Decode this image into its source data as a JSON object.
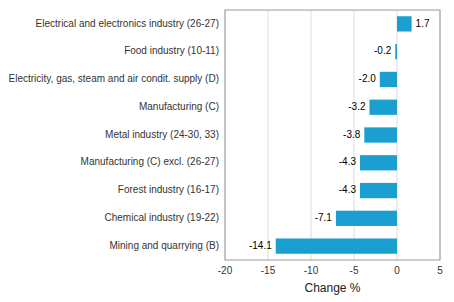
{
  "chart_data": {
    "type": "bar",
    "orientation": "horizontal",
    "categories": [
      "Mining and quarrying (B)",
      "Chemical industry (19-22)",
      "Forest industry (16-17)",
      "Manufacturing (C) excl. (26-27)",
      "Metal industry (24-30, 33)",
      "Manufacturing (C)",
      "Electricity, gas, steam and air condit. supply (D)",
      "Food industry (10-11)",
      "Electrical and electronics industry (26-27)"
    ],
    "values": [
      -14.1,
      -7.1,
      -4.3,
      -4.3,
      -3.8,
      -3.2,
      -2.0,
      -0.2,
      1.7
    ],
    "value_labels": [
      "-14.1",
      "-7.1",
      "-4.3",
      "-4.3",
      "-3.8",
      "-3.2",
      "-2.0",
      "-0.2",
      "1.7"
    ],
    "data_labels": true,
    "color": "#1b9fd0",
    "xlabel": "Change %",
    "xlim": [
      -20,
      5
    ],
    "xticks": [
      -20,
      -15,
      -10,
      -5,
      0,
      5
    ],
    "grid": true
  }
}
